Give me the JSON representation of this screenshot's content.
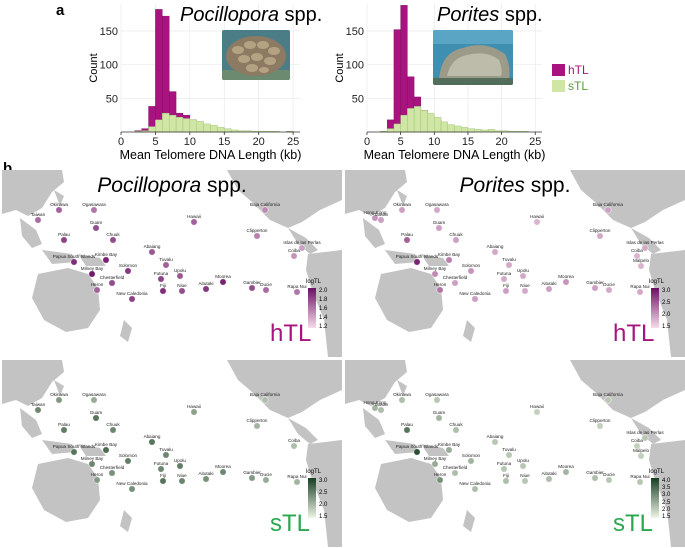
{
  "panel_a_letter": "a",
  "panel_b_letter": "b",
  "legend": {
    "htl": {
      "label": "hTL",
      "color": "#a8137f"
    },
    "stl": {
      "label": "sTL",
      "color": "#cfe6a4"
    }
  },
  "chart_data": [
    {
      "type": "bar",
      "title": "Pocillopora spp.",
      "title_italic": "Pocillopora",
      "title_plain": "spp.",
      "xlabel": "Mean Telomere DNA Length (kb)",
      "ylabel": "Count",
      "xlim": [
        0,
        26
      ],
      "ylim": [
        0,
        190
      ],
      "xticks": [
        "0",
        "5",
        "10",
        "15",
        "20",
        "25"
      ],
      "yticks": [
        "50",
        "100",
        "150"
      ],
      "bin_width": 1,
      "bin_starts": [
        2,
        3,
        4,
        5,
        6,
        7,
        8,
        9,
        10,
        11,
        12,
        13,
        14,
        15,
        16,
        17,
        18,
        19,
        20,
        21,
        22,
        23,
        24,
        25
      ],
      "series": [
        {
          "name": "hTL",
          "values": [
            2,
            5,
            38,
            182,
            172,
            60,
            28,
            25,
            18,
            12,
            8,
            4,
            2,
            1,
            0,
            0,
            0,
            0,
            0,
            0,
            0,
            0,
            1,
            0
          ]
        },
        {
          "name": "sTL",
          "values": [
            1,
            2,
            8,
            18,
            28,
            25,
            22,
            20,
            18,
            16,
            12,
            10,
            7,
            5,
            3,
            2,
            2,
            1,
            1,
            1,
            1,
            0,
            1,
            0
          ]
        }
      ]
    },
    {
      "type": "bar",
      "title": "Porites spp.",
      "title_italic": "Porites",
      "title_plain": "spp.",
      "xlabel": "Mean Telomere DNA Length (kb)",
      "ylabel": "Count",
      "xlim": [
        0,
        26
      ],
      "ylim": [
        0,
        190
      ],
      "xticks": [
        "0",
        "5",
        "10",
        "15",
        "20",
        "25"
      ],
      "yticks": [
        "50",
        "100",
        "150"
      ],
      "bin_width": 1,
      "bin_starts": [
        2,
        3,
        4,
        5,
        6,
        7,
        8,
        9,
        10,
        11,
        12,
        13,
        14,
        15,
        16,
        17,
        18,
        19,
        20,
        21,
        22,
        23,
        24,
        25
      ],
      "series": [
        {
          "name": "hTL",
          "values": [
            1,
            18,
            152,
            188,
            82,
            52,
            32,
            25,
            18,
            10,
            6,
            4,
            2,
            1,
            0,
            0,
            0,
            0,
            0,
            0,
            0,
            0,
            0,
            0
          ]
        },
        {
          "name": "sTL",
          "values": [
            1,
            5,
            12,
            25,
            35,
            38,
            32,
            28,
            22,
            15,
            11,
            9,
            7,
            5,
            4,
            3,
            4,
            2,
            2,
            1,
            1,
            1,
            0,
            0
          ]
        }
      ]
    }
  ],
  "maps": [
    {
      "species_italic": "Pocillopora",
      "species_plain": "spp.",
      "label": "hTL",
      "cbar_title": "logTL",
      "cbar_ticks": [
        "2.0",
        "1.8",
        "1.6",
        "1.4",
        "1.2"
      ],
      "cbar_color": "#7b1575",
      "label_color": "#a8137f",
      "sites": [
        {
          "name": "Okinawa",
          "v": 0.6
        },
        {
          "name": "Ogasawara",
          "v": 0.5
        },
        {
          "name": "Taiwan",
          "v": 0.55
        },
        {
          "name": "Hawaii",
          "v": 0.6
        },
        {
          "name": "Baja California",
          "v": 0.4
        },
        {
          "name": "Guam",
          "v": 0.7
        },
        {
          "name": "Palau",
          "v": 0.75
        },
        {
          "name": "Chuuk",
          "v": 0.7
        },
        {
          "name": "Clipperton",
          "v": 0.45
        },
        {
          "name": "Coiba",
          "v": 0.35
        },
        {
          "name": "Islas de las Perlas",
          "v": 0.3
        },
        {
          "name": "Abaiang",
          "v": 0.65
        },
        {
          "name": "Kimbe Bay",
          "v": 0.9
        },
        {
          "name": "Papua South Islands",
          "v": 0.85
        },
        {
          "name": "Tuvalu",
          "v": 0.6
        },
        {
          "name": "Solomon",
          "v": 0.8
        },
        {
          "name": "Milney Bay",
          "v": 0.95
        },
        {
          "name": "Chesterfield",
          "v": 0.7
        },
        {
          "name": "Futuna",
          "v": 0.75
        },
        {
          "name": "Upolu",
          "v": 0.65
        },
        {
          "name": "Heron",
          "v": 0.6
        },
        {
          "name": "Fiji",
          "v": 0.85
        },
        {
          "name": "Niue",
          "v": 0.7
        },
        {
          "name": "Aitutaki",
          "v": 0.8
        },
        {
          "name": "Moorea",
          "v": 0.9
        },
        {
          "name": "New Caledonia",
          "v": 0.75
        },
        {
          "name": "Gambier",
          "v": 0.7
        },
        {
          "name": "Ducie",
          "v": 0.55
        },
        {
          "name": "Rapa Nui",
          "v": 0.5
        }
      ]
    },
    {
      "species_italic": "Porites",
      "species_plain": "spp.",
      "label": "hTL",
      "cbar_title": "logTL",
      "cbar_ticks": [
        "3.0",
        "2.5",
        "2.0",
        "1.5"
      ],
      "cbar_color": "#7b1575",
      "label_color": "#a8137f",
      "sites": [
        {
          "name": "Okinawa",
          "v": 0.3
        },
        {
          "name": "Ogasawara",
          "v": 0.25
        },
        {
          "name": "Hong Kong",
          "v": 0.35
        },
        {
          "name": "Taiwan",
          "v": 0.3
        },
        {
          "name": "Hawaii",
          "v": 0.2
        },
        {
          "name": "Baja California",
          "v": 0.3
        },
        {
          "name": "Guam",
          "v": 0.3
        },
        {
          "name": "Palau",
          "v": 0.6
        },
        {
          "name": "Chuuk",
          "v": 0.3
        },
        {
          "name": "Clipperton",
          "v": 0.25
        },
        {
          "name": "Coiba",
          "v": 0.2
        },
        {
          "name": "Islas de las Perlas",
          "v": 0.25
        },
        {
          "name": "Malpelo",
          "v": 0.2
        },
        {
          "name": "Abaiang",
          "v": 0.25
        },
        {
          "name": "Kimbe Bay",
          "v": 0.45
        },
        {
          "name": "Papua South Islands",
          "v": 0.9
        },
        {
          "name": "Tuvalu",
          "v": 0.25
        },
        {
          "name": "Solomon",
          "v": 0.35
        },
        {
          "name": "Milney Bay",
          "v": 0.4
        },
        {
          "name": "Chesterfield",
          "v": 0.3
        },
        {
          "name": "Futuna",
          "v": 0.25
        },
        {
          "name": "Upolu",
          "v": 0.25
        },
        {
          "name": "Heron",
          "v": 0.5
        },
        {
          "name": "Fiji",
          "v": 0.3
        },
        {
          "name": "Niue",
          "v": 0.25
        },
        {
          "name": "Aitutaki",
          "v": 0.3
        },
        {
          "name": "Moorea",
          "v": 0.35
        },
        {
          "name": "New Caledonia",
          "v": 0.3
        },
        {
          "name": "Gambier",
          "v": 0.3
        },
        {
          "name": "Ducie",
          "v": 0.25
        },
        {
          "name": "Rapa Nui",
          "v": 0.25
        }
      ]
    },
    {
      "species_italic": "",
      "species_plain": "",
      "label": "sTL",
      "cbar_title": "logTL",
      "cbar_ticks": [
        "3.0",
        "2.5",
        "2.0",
        "1.5"
      ],
      "cbar_color": "#1f4d2b",
      "label_color": "#2aa84f",
      "sites": [
        {
          "name": "Okinawa",
          "v": 0.5
        },
        {
          "name": "Ogasawara",
          "v": 0.4
        },
        {
          "name": "Taiwan",
          "v": 0.6
        },
        {
          "name": "Hawaii",
          "v": 0.45
        },
        {
          "name": "Baja California",
          "v": 0.3
        },
        {
          "name": "Guam",
          "v": 0.7
        },
        {
          "name": "Palau",
          "v": 0.65
        },
        {
          "name": "Chuuk",
          "v": 0.6
        },
        {
          "name": "Clipperton",
          "v": 0.35
        },
        {
          "name": "Coiba",
          "v": 0.3
        },
        {
          "name": "Abaiang",
          "v": 0.7
        },
        {
          "name": "Kimbe Bay",
          "v": 0.75
        },
        {
          "name": "Papua South Islands",
          "v": 0.7
        },
        {
          "name": "Tuvalu",
          "v": 0.6
        },
        {
          "name": "Solomon",
          "v": 0.65
        },
        {
          "name": "Milney Bay",
          "v": 0.6
        },
        {
          "name": "Chesterfield",
          "v": 0.55
        },
        {
          "name": "Futuna",
          "v": 0.6
        },
        {
          "name": "Upolu",
          "v": 0.65
        },
        {
          "name": "Heron",
          "v": 0.5
        },
        {
          "name": "Fiji",
          "v": 0.7
        },
        {
          "name": "Niue",
          "v": 0.6
        },
        {
          "name": "Aitutaki",
          "v": 0.55
        },
        {
          "name": "Moorea",
          "v": 0.6
        },
        {
          "name": "New Caledonia",
          "v": 0.55
        },
        {
          "name": "Gambier",
          "v": 0.5
        },
        {
          "name": "Ducie",
          "v": 0.4
        },
        {
          "name": "Rapa Nui",
          "v": 0.35
        }
      ]
    },
    {
      "species_italic": "",
      "species_plain": "",
      "label": "sTL",
      "cbar_title": "logTL",
      "cbar_ticks": [
        "4.0",
        "3.5",
        "3.0",
        "2.5",
        "2.0",
        "1.5"
      ],
      "cbar_color": "#1f4d2b",
      "label_color": "#2aa84f",
      "sites": [
        {
          "name": "Okinawa",
          "v": 0.3
        },
        {
          "name": "Ogasawara",
          "v": 0.25
        },
        {
          "name": "Hong Kong",
          "v": 0.35
        },
        {
          "name": "Taiwan",
          "v": 0.3
        },
        {
          "name": "Hawaii",
          "v": 0.2
        },
        {
          "name": "Baja California",
          "v": 0.25
        },
        {
          "name": "Guam",
          "v": 0.35
        },
        {
          "name": "Palau",
          "v": 0.7
        },
        {
          "name": "Chuuk",
          "v": 0.3
        },
        {
          "name": "Clipperton",
          "v": 0.2
        },
        {
          "name": "Coiba",
          "v": 0.2
        },
        {
          "name": "Islas de las Perlas",
          "v": 0.25
        },
        {
          "name": "Malpelo",
          "v": 0.2
        },
        {
          "name": "Abaiang",
          "v": 0.25
        },
        {
          "name": "Kimbe Bay",
          "v": 0.4
        },
        {
          "name": "Papua South Islands",
          "v": 0.9
        },
        {
          "name": "Tuvalu",
          "v": 0.25
        },
        {
          "name": "Solomon",
          "v": 0.35
        },
        {
          "name": "Milney Bay",
          "v": 0.4
        },
        {
          "name": "Chesterfield",
          "v": 0.3
        },
        {
          "name": "Futuna",
          "v": 0.25
        },
        {
          "name": "Upolu",
          "v": 0.25
        },
        {
          "name": "Heron",
          "v": 0.55
        },
        {
          "name": "Fiji",
          "v": 0.3
        },
        {
          "name": "Niue",
          "v": 0.25
        },
        {
          "name": "Aitutaki",
          "v": 0.3
        },
        {
          "name": "Moorea",
          "v": 0.35
        },
        {
          "name": "New Caledonia",
          "v": 0.3
        },
        {
          "name": "Gambier",
          "v": 0.3
        },
        {
          "name": "Ducie",
          "v": 0.25
        },
        {
          "name": "Rapa Nui",
          "v": 0.25
        }
      ]
    }
  ]
}
